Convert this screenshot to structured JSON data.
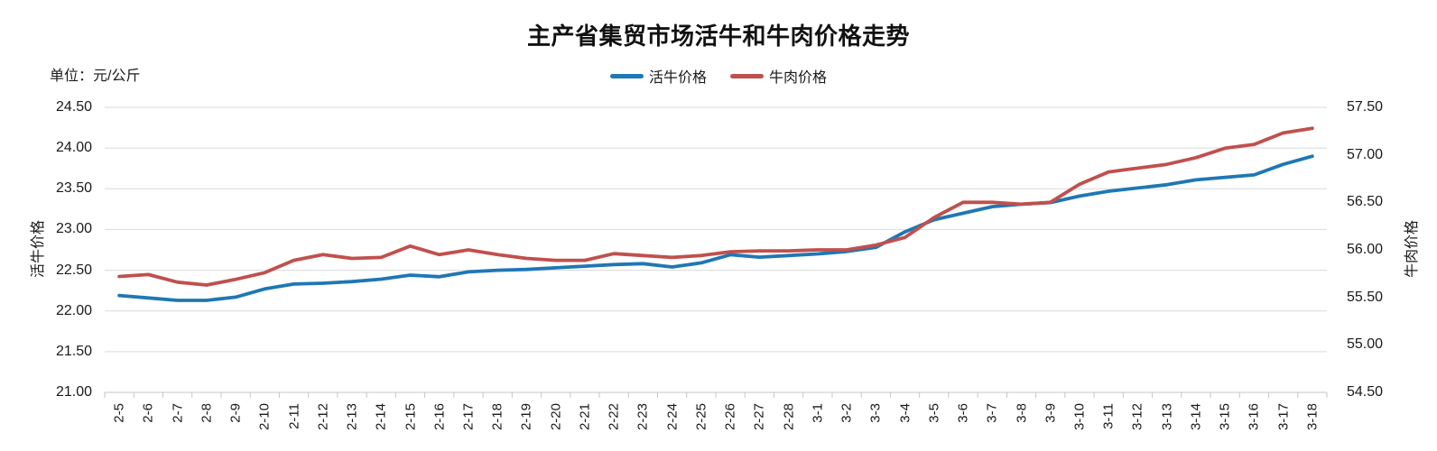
{
  "title": "主产省集贸市场活牛和牛肉价格走势",
  "unit_label": "单位：元/公斤",
  "colors": {
    "live_cattle": "#1F77B4",
    "beef": "#C0504D",
    "gridline": "#D9D9D9",
    "axis_line": "#C6C6C6",
    "text": "#1a1a1a"
  },
  "legend": [
    {
      "label": "活牛价格",
      "color": "#1F77B4"
    },
    {
      "label": "牛肉价格",
      "color": "#C0504D"
    }
  ],
  "chart_data": {
    "type": "line",
    "title": "主产省集贸市场活牛和牛肉价格走势",
    "unit": "元/公斤",
    "grid": true,
    "legend_position": "top",
    "categories": [
      "2-5",
      "2-6",
      "2-7",
      "2-8",
      "2-9",
      "2-10",
      "2-11",
      "2-12",
      "2-13",
      "2-14",
      "2-15",
      "2-16",
      "2-17",
      "2-18",
      "2-19",
      "2-20",
      "2-21",
      "2-22",
      "2-23",
      "2-24",
      "2-25",
      "2-26",
      "2-27",
      "2-28",
      "3-1",
      "3-2",
      "3-3",
      "3-4",
      "3-5",
      "3-6",
      "3-7",
      "3-8",
      "3-9",
      "3-10",
      "3-11",
      "3-12",
      "3-13",
      "3-14",
      "3-15",
      "3-16",
      "3-17",
      "3-18"
    ],
    "series": [
      {
        "name": "活牛价格",
        "axis": "left",
        "color": "#1F77B4",
        "values": [
          22.19,
          22.16,
          22.13,
          22.13,
          22.17,
          22.27,
          22.33,
          22.34,
          22.36,
          22.39,
          22.44,
          22.42,
          22.48,
          22.5,
          22.51,
          22.53,
          22.55,
          22.57,
          22.58,
          22.54,
          22.59,
          22.69,
          22.66,
          22.68,
          22.7,
          22.73,
          22.78,
          22.97,
          23.12,
          23.2,
          23.28,
          23.31,
          23.33,
          23.41,
          23.47,
          23.51,
          23.55,
          23.61,
          23.64,
          23.67,
          23.8,
          23.9
        ]
      },
      {
        "name": "牛肉价格",
        "axis": "right",
        "color": "#C0504D",
        "values": [
          55.72,
          55.74,
          55.66,
          55.63,
          55.69,
          55.76,
          55.89,
          55.95,
          55.91,
          55.92,
          56.04,
          55.95,
          56.0,
          55.95,
          55.91,
          55.89,
          55.89,
          55.96,
          55.94,
          55.92,
          55.94,
          55.98,
          55.99,
          55.99,
          56.0,
          56.0,
          56.05,
          56.13,
          56.34,
          56.5,
          56.5,
          56.48,
          56.5,
          56.69,
          56.82,
          56.86,
          56.9,
          56.97,
          57.07,
          57.11,
          57.23,
          57.28
        ]
      }
    ],
    "left_axis": {
      "title": "活牛价格",
      "min": 21.0,
      "max": 24.5,
      "step": 0.5,
      "ticks": [
        "24.50",
        "24.00",
        "23.50",
        "23.00",
        "22.50",
        "22.00",
        "21.50",
        "21.00"
      ]
    },
    "right_axis": {
      "title": "牛肉价格",
      "min": 54.5,
      "max": 57.5,
      "step": 0.5,
      "ticks": [
        "57.50",
        "57.00",
        "56.50",
        "56.00",
        "55.50",
        "55.00",
        "54.50"
      ]
    }
  }
}
